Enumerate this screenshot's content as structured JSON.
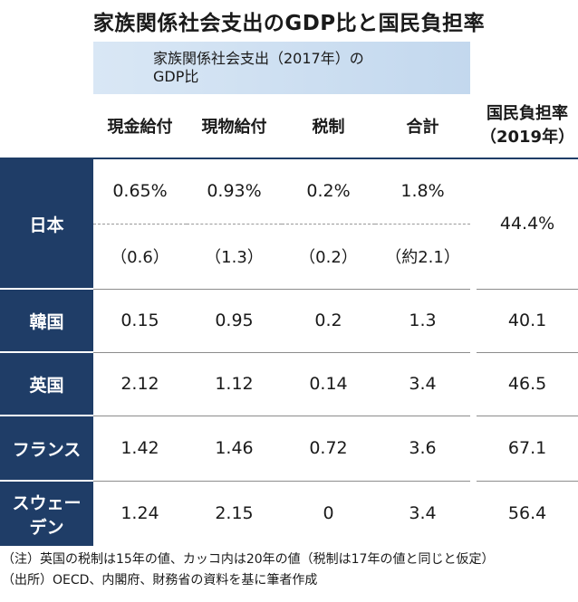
{
  "title": "家族関係社会支出のGDP比と国民負担率",
  "group_header": {
    "line1": "家族関係社会支出（2017年）の",
    "line2": "GDP比"
  },
  "columns": {
    "cash": "現金給付",
    "in_kind": "現物給付",
    "tax": "税制",
    "total": "合計",
    "burden_line1": "国民負担率",
    "burden_line2": "（2019年）"
  },
  "rows": {
    "japan": {
      "name": "日本",
      "cash": "0.65%",
      "in_kind": "0.93%",
      "tax": "0.2%",
      "total": "1.8%",
      "cash_alt": "（0.6）",
      "in_kind_alt": "（1.3）",
      "tax_alt": "（0.2）",
      "total_alt": "（約2.1）",
      "burden": "44.4%"
    },
    "korea": {
      "name": "韓国",
      "cash": "0.15",
      "in_kind": "0.95",
      "tax": "0.2",
      "total": "1.3",
      "burden": "40.1"
    },
    "uk": {
      "name": "英国",
      "cash": "2.12",
      "in_kind": "1.12",
      "tax": "0.14",
      "total": "3.4",
      "burden": "46.5"
    },
    "france": {
      "name": "フランス",
      "cash": "1.42",
      "in_kind": "1.46",
      "tax": "0.72",
      "total": "3.6",
      "burden": "67.1"
    },
    "sweden": {
      "name_line1": "スウェー",
      "name_line2": "デン",
      "cash": "1.24",
      "in_kind": "2.15",
      "tax": "0",
      "total": "3.4",
      "burden": "56.4"
    }
  },
  "notes": {
    "note": "（注）英国の税制は15年の値、カッコ内は20年の値（税制は17年の値と同じと仮定）",
    "source": "（出所）OECD、内閣府、財務省の資料を基に筆者作成"
  }
}
